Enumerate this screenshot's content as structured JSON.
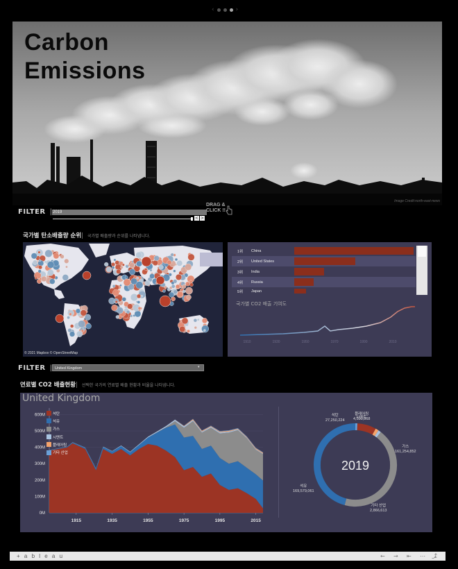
{
  "pager": {
    "count": 3,
    "active_index": 2
  },
  "hero": {
    "title_line1": "Carbon",
    "title_line2": "Emissions",
    "credit": "Image Credit:north-east-news"
  },
  "filter1": {
    "label": "FILTER",
    "divider": "|",
    "year_value": "2019",
    "drag_hint_line1": "DRAG &",
    "drag_hint_line2": "CLICK !!",
    "prev_btn": "<",
    "next_btn": ">"
  },
  "ranking_section": {
    "title": "국가별 탄소배출량 순위",
    "subtitle": "국가별 배출량과 순위를 나타냅니다."
  },
  "map": {
    "attribution": "© 2021 Mapbox © OpenStreetMap"
  },
  "ranking": {
    "rows": [
      {
        "rank": "1위",
        "country": "China",
        "share": 1.0
      },
      {
        "rank": "2위",
        "country": "United States",
        "share": 0.51
      },
      {
        "rank": "3위",
        "country": "India",
        "share": 0.25
      },
      {
        "rank": "4위",
        "country": "Russia",
        "share": 0.16
      },
      {
        "rank": "5위",
        "country": "Japan",
        "share": 0.1
      }
    ],
    "trend_title": "국가별 CO2 배출 기여도",
    "trend_axis": [
      "1910",
      "1930",
      "1950",
      "1970",
      "1990",
      "2010"
    ]
  },
  "filter2": {
    "label": "FILTER",
    "divider": "|",
    "country_value": "United Kingdom",
    "arrow": "▾"
  },
  "fuel_section": {
    "title": "연료별 CO2 배출현황",
    "subtitle": "선택한 국가의 연료별 배출 현황과 비율을 나타냅니다."
  },
  "fuel_panel": {
    "country": "United Kingdom",
    "legend": [
      {
        "name": "석탄",
        "color": "#9c3424"
      },
      {
        "name": "석유",
        "color": "#2f6fb0"
      },
      {
        "name": "가스",
        "color": "#8c8c8c"
      },
      {
        "name": "시멘트",
        "color": "#a8c3e0"
      },
      {
        "name": "플레어링",
        "color": "#f4a36b"
      },
      {
        "name": "기타 산업",
        "color": "#6aa0d8"
      }
    ],
    "donut": {
      "year": "2019",
      "labels": [
        {
          "name": "석탄",
          "value": "27,250,224"
        },
        {
          "name": "플레어링",
          "value": "4,599,868"
        },
        {
          "name": "시멘트",
          "value": ""
        },
        {
          "name": "가스",
          "value": "161,254,852"
        },
        {
          "name": "석유",
          "value": "169,579,061"
        },
        {
          "name": "기타 산업",
          "value": "2,866,613"
        }
      ]
    }
  },
  "chart_data": [
    {
      "type": "area",
      "title": "",
      "series_names": [
        "석탄",
        "석유",
        "가스",
        "시멘트",
        "플레어링",
        "기타 산업"
      ],
      "x": [
        1900,
        1910,
        1913,
        1920,
        1926,
        1930,
        1935,
        1940,
        1945,
        1950,
        1955,
        1960,
        1965,
        1970,
        1975,
        1980,
        1985,
        1990,
        1995,
        2000,
        2005,
        2010,
        2015,
        2019
      ],
      "series": [
        {
          "name": "석탄",
          "values": [
            380,
            400,
            425,
            390,
            260,
            390,
            360,
            390,
            350,
            390,
            420,
            410,
            380,
            340,
            260,
            280,
            220,
            240,
            170,
            140,
            150,
            120,
            85,
            27
          ]
        },
        {
          "name": "석유",
          "values": [
            2,
            4,
            5,
            8,
            10,
            12,
            15,
            18,
            20,
            25,
            40,
            80,
            140,
            200,
            200,
            190,
            170,
            170,
            165,
            160,
            165,
            155,
            150,
            170
          ]
        },
        {
          "name": "가스",
          "values": [
            0,
            0,
            0,
            0,
            0,
            0,
            0,
            0,
            0,
            0,
            0,
            1,
            3,
            20,
            60,
            90,
            100,
            110,
            150,
            190,
            190,
            180,
            150,
            161
          ]
        },
        {
          "name": "시멘트",
          "values": [
            1,
            1,
            1,
            1,
            2,
            2,
            2,
            3,
            3,
            4,
            5,
            6,
            7,
            8,
            8,
            7,
            6,
            6,
            6,
            6,
            5,
            4,
            4,
            4
          ]
        },
        {
          "name": "플레어링",
          "values": [
            0,
            0,
            0,
            0,
            0,
            0,
            0,
            0,
            0,
            0,
            0,
            0,
            0,
            1,
            3,
            5,
            5,
            4,
            5,
            5,
            4,
            4,
            5,
            5
          ]
        },
        {
          "name": "기타 산업",
          "values": [
            0,
            0,
            0,
            0,
            0,
            0,
            0,
            0,
            0,
            0,
            0,
            0,
            0,
            1,
            1,
            2,
            2,
            2,
            3,
            3,
            3,
            3,
            3,
            3
          ]
        }
      ],
      "yticks": [
        "0M",
        "100M",
        "200M",
        "300M",
        "400M",
        "500M",
        "600M"
      ],
      "xticks": [
        "1915",
        "1935",
        "1955",
        "1975",
        "1995",
        "2015"
      ],
      "ylim": [
        0,
        640
      ],
      "xlim": [
        1900,
        2019
      ]
    },
    {
      "type": "pie",
      "title": "",
      "categories": [
        "석탄",
        "플레어링",
        "시멘트",
        "가스",
        "석유",
        "기타 산업"
      ],
      "values": [
        27250224,
        4599868,
        4000000,
        161254852,
        169579061,
        2866613
      ],
      "colors": [
        "#9c3424",
        "#f4a36b",
        "#a8c3e0",
        "#8c8c8c",
        "#2f6fb0",
        "#6aa0d8"
      ]
    }
  ],
  "footer": {
    "logo": "+ a b l e a u",
    "controls": [
      "←",
      "→",
      "⇤",
      "⋯",
      "⤴",
      "⤓"
    ]
  }
}
